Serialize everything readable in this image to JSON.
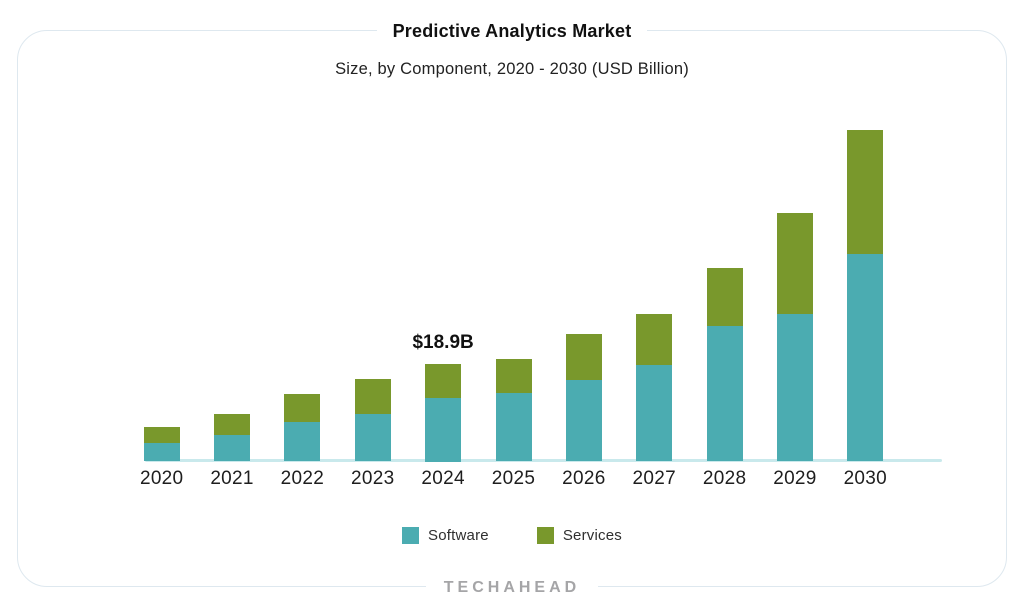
{
  "card": {
    "title": "Predictive Analytics Market",
    "subtitle": "Size, by Component, 2020 - 2030 (USD Billion)",
    "footer_logo": "TECHAHEAD"
  },
  "colors": {
    "software": "#4bacb1",
    "services": "#79982c",
    "axis_line": "#c9e9ec",
    "card_border": "#dee8ef",
    "title_text": "#111111",
    "tick_text": "#1e1e1e",
    "logo_text": "#a5a5a7"
  },
  "annotation": {
    "text": "$18.9B",
    "category": "2024"
  },
  "legend": [
    {
      "label": "Software",
      "color": "#4bacb1"
    },
    {
      "label": "Services",
      "color": "#79982c"
    }
  ],
  "chart_data": {
    "type": "bar",
    "stacked": true,
    "title": "Predictive Analytics Market",
    "subtitle": "Size, by Component, 2020 - 2030 (USD Billion)",
    "unit": "USD Billion",
    "categories": [
      "2020",
      "2021",
      "2022",
      "2023",
      "2024",
      "2025",
      "2026",
      "2027",
      "2028",
      "2029",
      "2030"
    ],
    "series": [
      {
        "name": "Software",
        "color": "#4bacb1",
        "values": [
          3.5,
          5.2,
          7.7,
          9.1,
          12.3,
          13.3,
          15.8,
          18.7,
          26.2,
          28.4,
          40.0
        ]
      },
      {
        "name": "Services",
        "color": "#79982c",
        "values": [
          3.1,
          3.9,
          5.4,
          6.9,
          6.6,
          6.4,
          8.7,
          9.8,
          11.2,
          19.6,
          24.0
        ]
      }
    ],
    "totals": [
      6.6,
      9.1,
      13.1,
      16.0,
      18.9,
      19.7,
      24.5,
      28.5,
      37.4,
      48.0,
      64.0
    ],
    "annotations": [
      {
        "category": "2024",
        "text": "$18.9B"
      }
    ],
    "xlabel": "",
    "ylabel": "",
    "y_axis_visible": false,
    "grid": false,
    "legend_position": "bottom"
  }
}
